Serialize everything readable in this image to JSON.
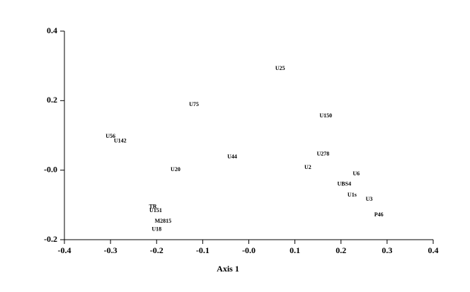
{
  "chart_data": {
    "type": "scatter",
    "x_label": "Axis 1",
    "labels": [
      "U25",
      "U75",
      "U150",
      "U56",
      "U142",
      "U44",
      "U278",
      "U20",
      "U2",
      "U6",
      "UBS4",
      "U1s",
      "U3",
      "P46",
      "TR",
      "U151",
      "M2815",
      "U18"
    ],
    "x": [
      0.068,
      -0.119,
      0.167,
      -0.3,
      -0.279,
      -0.036,
      0.161,
      -0.159,
      0.128,
      0.233,
      0.207,
      0.224,
      0.261,
      0.282,
      -0.208,
      -0.202,
      -0.186,
      -0.2
    ],
    "values": [
      0.292,
      0.188,
      0.156,
      0.097,
      0.083,
      0.038,
      0.046,
      0.001,
      0.007,
      -0.011,
      -0.041,
      -0.072,
      -0.084,
      -0.129,
      -0.106,
      -0.117,
      -0.147,
      -0.171
    ],
    "xlim": [
      -0.4,
      0.4
    ],
    "ylim": [
      -0.2,
      0.4
    ],
    "xticks": [
      -0.4,
      -0.3,
      -0.2,
      -0.1,
      {
        "value": 0,
        "label": "-0.0"
      },
      0.1,
      0.2,
      0.3,
      0.4
    ],
    "yticks": [
      {
        "value": 0.4,
        "label": "0.4"
      },
      0.2,
      {
        "value": 0,
        "label": "-0.0"
      },
      -0.2
    ]
  }
}
